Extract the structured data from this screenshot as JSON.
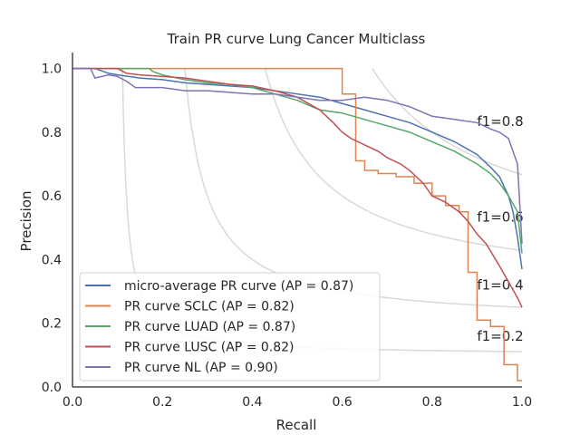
{
  "chart_data": {
    "type": "line",
    "title": "Train PR curve Lung Cancer Multiclass",
    "xlabel": "Recall",
    "ylabel": "Precision",
    "xlim": [
      0.0,
      1.0
    ],
    "ylim": [
      0.0,
      1.05
    ],
    "x_ticks": [
      "0.0",
      "0.2",
      "0.4",
      "0.6",
      "0.8",
      "1.0"
    ],
    "y_ticks": [
      "0.0",
      "0.2",
      "0.4",
      "0.6",
      "0.8",
      "1.0"
    ],
    "grid": false,
    "legend_position": "lower-left",
    "iso_f1": [
      {
        "f1": 0.2,
        "label": "f1=0.2"
      },
      {
        "f1": 0.4,
        "label": "f1=0.4"
      },
      {
        "f1": 0.6,
        "label": "f1=0.6"
      },
      {
        "f1": 0.8,
        "label": "f1=0.8"
      }
    ],
    "series": [
      {
        "name": "micro-average PR curve (AP = 0.87)",
        "color": "#4c72b0",
        "points": [
          [
            0.0,
            1.0
          ],
          [
            0.05,
            1.0
          ],
          [
            0.08,
            0.985
          ],
          [
            0.1,
            0.98
          ],
          [
            0.15,
            0.97
          ],
          [
            0.2,
            0.965
          ],
          [
            0.25,
            0.955
          ],
          [
            0.3,
            0.95
          ],
          [
            0.35,
            0.945
          ],
          [
            0.4,
            0.94
          ],
          [
            0.45,
            0.93
          ],
          [
            0.5,
            0.92
          ],
          [
            0.55,
            0.91
          ],
          [
            0.6,
            0.89
          ],
          [
            0.65,
            0.87
          ],
          [
            0.7,
            0.85
          ],
          [
            0.75,
            0.83
          ],
          [
            0.8,
            0.8
          ],
          [
            0.85,
            0.77
          ],
          [
            0.9,
            0.73
          ],
          [
            0.93,
            0.69
          ],
          [
            0.95,
            0.66
          ],
          [
            0.97,
            0.6
          ],
          [
            0.98,
            0.55
          ],
          [
            0.99,
            0.47
          ],
          [
            1.0,
            0.37
          ]
        ]
      },
      {
        "name": "PR curve SCLC (AP = 0.82)",
        "color": "#dd8452",
        "points": [
          [
            0.0,
            1.0
          ],
          [
            0.6,
            1.0
          ],
          [
            0.6,
            0.92
          ],
          [
            0.63,
            0.92
          ],
          [
            0.63,
            0.71
          ],
          [
            0.65,
            0.71
          ],
          [
            0.65,
            0.68
          ],
          [
            0.68,
            0.68
          ],
          [
            0.68,
            0.67
          ],
          [
            0.72,
            0.67
          ],
          [
            0.72,
            0.66
          ],
          [
            0.76,
            0.66
          ],
          [
            0.76,
            0.64
          ],
          [
            0.8,
            0.64
          ],
          [
            0.8,
            0.6
          ],
          [
            0.83,
            0.6
          ],
          [
            0.83,
            0.57
          ],
          [
            0.86,
            0.57
          ],
          [
            0.86,
            0.55
          ],
          [
            0.88,
            0.55
          ],
          [
            0.88,
            0.36
          ],
          [
            0.9,
            0.36
          ],
          [
            0.9,
            0.21
          ],
          [
            0.93,
            0.21
          ],
          [
            0.93,
            0.19
          ],
          [
            0.96,
            0.19
          ],
          [
            0.96,
            0.07
          ],
          [
            0.99,
            0.07
          ],
          [
            0.99,
            0.02
          ],
          [
            1.0,
            0.02
          ]
        ]
      },
      {
        "name": "PR curve LUAD (AP = 0.87)",
        "color": "#55a868",
        "points": [
          [
            0.0,
            1.0
          ],
          [
            0.17,
            1.0
          ],
          [
            0.18,
            0.99
          ],
          [
            0.2,
            0.98
          ],
          [
            0.25,
            0.965
          ],
          [
            0.3,
            0.955
          ],
          [
            0.35,
            0.95
          ],
          [
            0.4,
            0.94
          ],
          [
            0.45,
            0.92
          ],
          [
            0.5,
            0.9
          ],
          [
            0.55,
            0.87
          ],
          [
            0.6,
            0.86
          ],
          [
            0.65,
            0.84
          ],
          [
            0.7,
            0.82
          ],
          [
            0.75,
            0.8
          ],
          [
            0.8,
            0.77
          ],
          [
            0.85,
            0.74
          ],
          [
            0.9,
            0.7
          ],
          [
            0.93,
            0.67
          ],
          [
            0.95,
            0.64
          ],
          [
            0.97,
            0.6
          ],
          [
            0.99,
            0.55
          ],
          [
            1.0,
            0.42
          ]
        ]
      },
      {
        "name": "PR curve LUSC (AP = 0.82)",
        "color": "#c44e52",
        "points": [
          [
            0.0,
            1.0
          ],
          [
            0.1,
            1.0
          ],
          [
            0.12,
            0.985
          ],
          [
            0.15,
            0.98
          ],
          [
            0.2,
            0.975
          ],
          [
            0.25,
            0.97
          ],
          [
            0.3,
            0.96
          ],
          [
            0.35,
            0.95
          ],
          [
            0.4,
            0.945
          ],
          [
            0.45,
            0.93
          ],
          [
            0.5,
            0.91
          ],
          [
            0.55,
            0.87
          ],
          [
            0.58,
            0.83
          ],
          [
            0.6,
            0.8
          ],
          [
            0.62,
            0.78
          ],
          [
            0.65,
            0.76
          ],
          [
            0.68,
            0.74
          ],
          [
            0.7,
            0.72
          ],
          [
            0.73,
            0.7
          ],
          [
            0.75,
            0.68
          ],
          [
            0.78,
            0.64
          ],
          [
            0.8,
            0.6
          ],
          [
            0.83,
            0.58
          ],
          [
            0.86,
            0.55
          ],
          [
            0.88,
            0.52
          ],
          [
            0.9,
            0.48
          ],
          [
            0.92,
            0.45
          ],
          [
            0.95,
            0.38
          ],
          [
            0.97,
            0.33
          ],
          [
            0.99,
            0.28
          ],
          [
            1.0,
            0.25
          ]
        ]
      },
      {
        "name": "PR curve NL (AP = 0.90)",
        "color": "#8172b3",
        "points": [
          [
            0.0,
            1.0
          ],
          [
            0.04,
            1.0
          ],
          [
            0.05,
            0.97
          ],
          [
            0.08,
            0.98
          ],
          [
            0.1,
            0.975
          ],
          [
            0.12,
            0.96
          ],
          [
            0.14,
            0.94
          ],
          [
            0.2,
            0.94
          ],
          [
            0.25,
            0.93
          ],
          [
            0.3,
            0.93
          ],
          [
            0.35,
            0.925
          ],
          [
            0.4,
            0.92
          ],
          [
            0.45,
            0.92
          ],
          [
            0.5,
            0.91
          ],
          [
            0.55,
            0.9
          ],
          [
            0.6,
            0.9
          ],
          [
            0.65,
            0.91
          ],
          [
            0.7,
            0.9
          ],
          [
            0.75,
            0.88
          ],
          [
            0.8,
            0.85
          ],
          [
            0.85,
            0.84
          ],
          [
            0.9,
            0.83
          ],
          [
            0.93,
            0.81
          ],
          [
            0.95,
            0.8
          ],
          [
            0.97,
            0.78
          ],
          [
            0.99,
            0.7
          ],
          [
            1.0,
            0.45
          ]
        ]
      }
    ]
  }
}
